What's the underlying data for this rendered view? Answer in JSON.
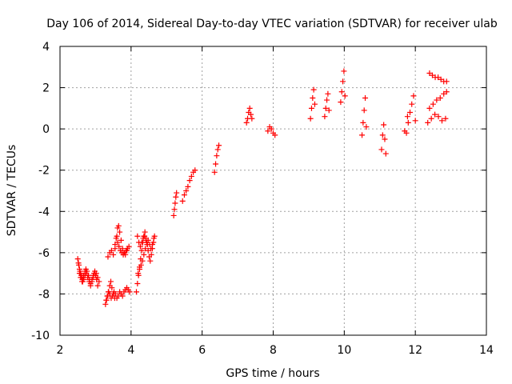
{
  "chart_data": {
    "type": "scatter",
    "title": "Day 106 of 2014, Sidereal Day-to-day VTEC variation (SDTVAR) for receiver ulab",
    "xlabel": "GPS time / hours",
    "ylabel": "SDTVAR / TECUs",
    "xlim": [
      2,
      14
    ],
    "ylim": [
      -10,
      4
    ],
    "xticks": [
      2,
      4,
      6,
      8,
      10,
      12,
      14
    ],
    "yticks": [
      -10,
      -8,
      -6,
      -4,
      -2,
      0,
      2,
      4
    ],
    "grid": true,
    "marker": "plus",
    "color": "#ff0000",
    "series": [
      {
        "x": [
          2.5,
          2.53,
          2.56,
          2.6,
          2.63,
          2.66,
          2.7,
          2.73,
          2.76,
          2.8,
          2.83,
          2.86,
          2.9,
          2.93,
          2.96,
          3.0,
          3.03,
          3.06,
          2.55,
          2.58,
          2.62,
          2.66,
          2.7,
          2.74,
          2.78,
          2.82,
          2.86,
          2.9,
          2.94,
          2.98,
          3.02,
          3.06,
          3.1,
          2.52,
          2.55,
          2.58,
          2.61,
          2.64,
          2.67,
          2.7,
          3.3,
          3.33,
          3.36,
          3.4,
          3.44,
          3.48,
          3.52,
          3.56,
          3.6,
          3.64,
          3.68,
          3.72,
          3.76,
          3.8,
          3.84,
          3.88,
          3.92,
          3.96,
          3.28,
          3.31,
          3.34,
          3.37,
          3.4,
          3.43,
          3.46,
          3.5,
          3.54,
          3.35,
          3.4,
          3.45,
          3.5,
          3.55,
          3.6,
          3.62,
          3.65,
          3.68,
          3.72,
          3.76,
          3.8,
          3.84,
          3.88,
          3.55,
          3.58,
          3.62,
          3.66,
          3.7,
          3.74,
          3.78,
          3.82,
          3.86,
          3.9,
          3.94,
          4.15,
          4.18,
          4.21,
          4.24,
          4.27,
          4.3,
          4.33,
          4.36,
          4.39,
          4.42,
          4.45,
          4.48,
          4.51,
          4.54,
          4.57,
          4.6,
          4.63,
          4.66,
          4.2,
          4.24,
          4.28,
          4.32,
          4.36,
          4.4,
          4.44,
          4.48,
          4.52,
          4.56,
          4.6,
          4.64,
          4.18,
          4.22,
          4.26,
          4.3,
          4.34,
          4.38,
          4.42,
          4.46,
          5.2,
          5.22,
          5.24,
          5.26,
          5.28,
          5.45,
          5.5,
          5.55,
          5.6,
          5.65,
          5.7,
          5.75,
          5.8,
          6.35,
          6.38,
          6.41,
          6.44,
          6.47,
          7.25,
          7.28,
          7.31,
          7.34,
          7.37,
          7.4,
          7.85,
          7.9,
          7.95,
          8.0,
          8.05,
          9.05,
          9.08,
          9.11,
          9.14,
          9.17,
          9.45,
          9.48,
          9.51,
          9.54,
          9.57,
          9.9,
          9.93,
          9.96,
          9.99,
          10.02,
          10.5,
          10.53,
          10.56,
          10.59,
          10.62,
          11.05,
          11.08,
          11.11,
          11.14,
          11.17,
          11.75,
          11.8,
          11.85,
          11.9,
          11.95,
          12.0,
          11.7,
          11.78,
          12.4,
          12.48,
          12.56,
          12.64,
          12.72,
          12.8,
          12.88,
          12.35,
          12.45,
          12.55,
          12.65,
          12.75,
          12.85,
          12.4,
          12.5,
          12.6,
          12.7,
          12.8,
          12.88
        ],
        "y": [
          -6.3,
          -6.6,
          -6.9,
          -7.1,
          -7.3,
          -7.2,
          -7.0,
          -6.8,
          -6.9,
          -7.1,
          -7.3,
          -7.5,
          -7.4,
          -7.2,
          -7.0,
          -7.1,
          -7.3,
          -7.6,
          -7.0,
          -7.2,
          -7.4,
          -7.1,
          -6.9,
          -7.0,
          -7.2,
          -7.4,
          -7.6,
          -7.3,
          -7.1,
          -6.9,
          -7.0,
          -7.2,
          -7.4,
          -6.5,
          -6.8,
          -7.0,
          -7.2,
          -7.4,
          -7.3,
          -7.1,
          -8.3,
          -8.1,
          -7.9,
          -8.0,
          -8.2,
          -8.1,
          -7.9,
          -8.0,
          -8.2,
          -8.1,
          -7.9,
          -8.0,
          -8.1,
          -7.9,
          -7.8,
          -7.7,
          -7.8,
          -7.9,
          -8.5,
          -8.3,
          -8.1,
          -7.9,
          -7.6,
          -7.4,
          -7.7,
          -8.0,
          -8.2,
          -6.2,
          -6.0,
          -5.9,
          -6.1,
          -5.8,
          -5.2,
          -4.8,
          -4.7,
          -5.0,
          -5.4,
          -5.8,
          -6.0,
          -6.1,
          -5.9,
          -5.6,
          -5.3,
          -5.5,
          -5.7,
          -5.9,
          -6.0,
          -6.1,
          -6.0,
          -5.9,
          -5.8,
          -5.7,
          -7.9,
          -7.5,
          -7.1,
          -6.7,
          -6.3,
          -5.9,
          -5.5,
          -5.2,
          -5.0,
          -5.3,
          -5.6,
          -5.9,
          -6.2,
          -6.4,
          -6.1,
          -5.8,
          -5.5,
          -5.2,
          -7.0,
          -6.8,
          -6.6,
          -6.4,
          -6.1,
          -5.8,
          -5.5,
          -5.4,
          -5.6,
          -5.8,
          -5.6,
          -5.3,
          -5.2,
          -5.5,
          -5.7,
          -5.5,
          -5.3,
          -5.2,
          -5.4,
          -5.6,
          -4.2,
          -3.9,
          -3.6,
          -3.3,
          -3.1,
          -3.5,
          -3.2,
          -3.0,
          -2.8,
          -2.5,
          -2.3,
          -2.1,
          -2.0,
          -2.1,
          -1.7,
          -1.3,
          -1.0,
          -0.8,
          0.3,
          0.5,
          0.8,
          1.0,
          0.7,
          0.5,
          -0.1,
          0.1,
          0.0,
          -0.2,
          -0.3,
          0.5,
          1.0,
          1.5,
          1.9,
          1.2,
          0.6,
          1.0,
          1.4,
          1.7,
          0.9,
          1.3,
          1.8,
          2.3,
          2.8,
          1.6,
          -0.3,
          0.3,
          0.9,
          1.5,
          0.1,
          -1.0,
          -0.3,
          0.2,
          -0.5,
          -1.2,
          -0.2,
          0.3,
          0.8,
          1.2,
          1.6,
          0.4,
          -0.1,
          0.6,
          2.7,
          2.6,
          2.5,
          2.5,
          2.4,
          2.3,
          2.3,
          0.3,
          0.5,
          0.7,
          0.6,
          0.4,
          0.5,
          1.0,
          1.2,
          1.4,
          1.5,
          1.7,
          1.8
        ]
      }
    ]
  }
}
